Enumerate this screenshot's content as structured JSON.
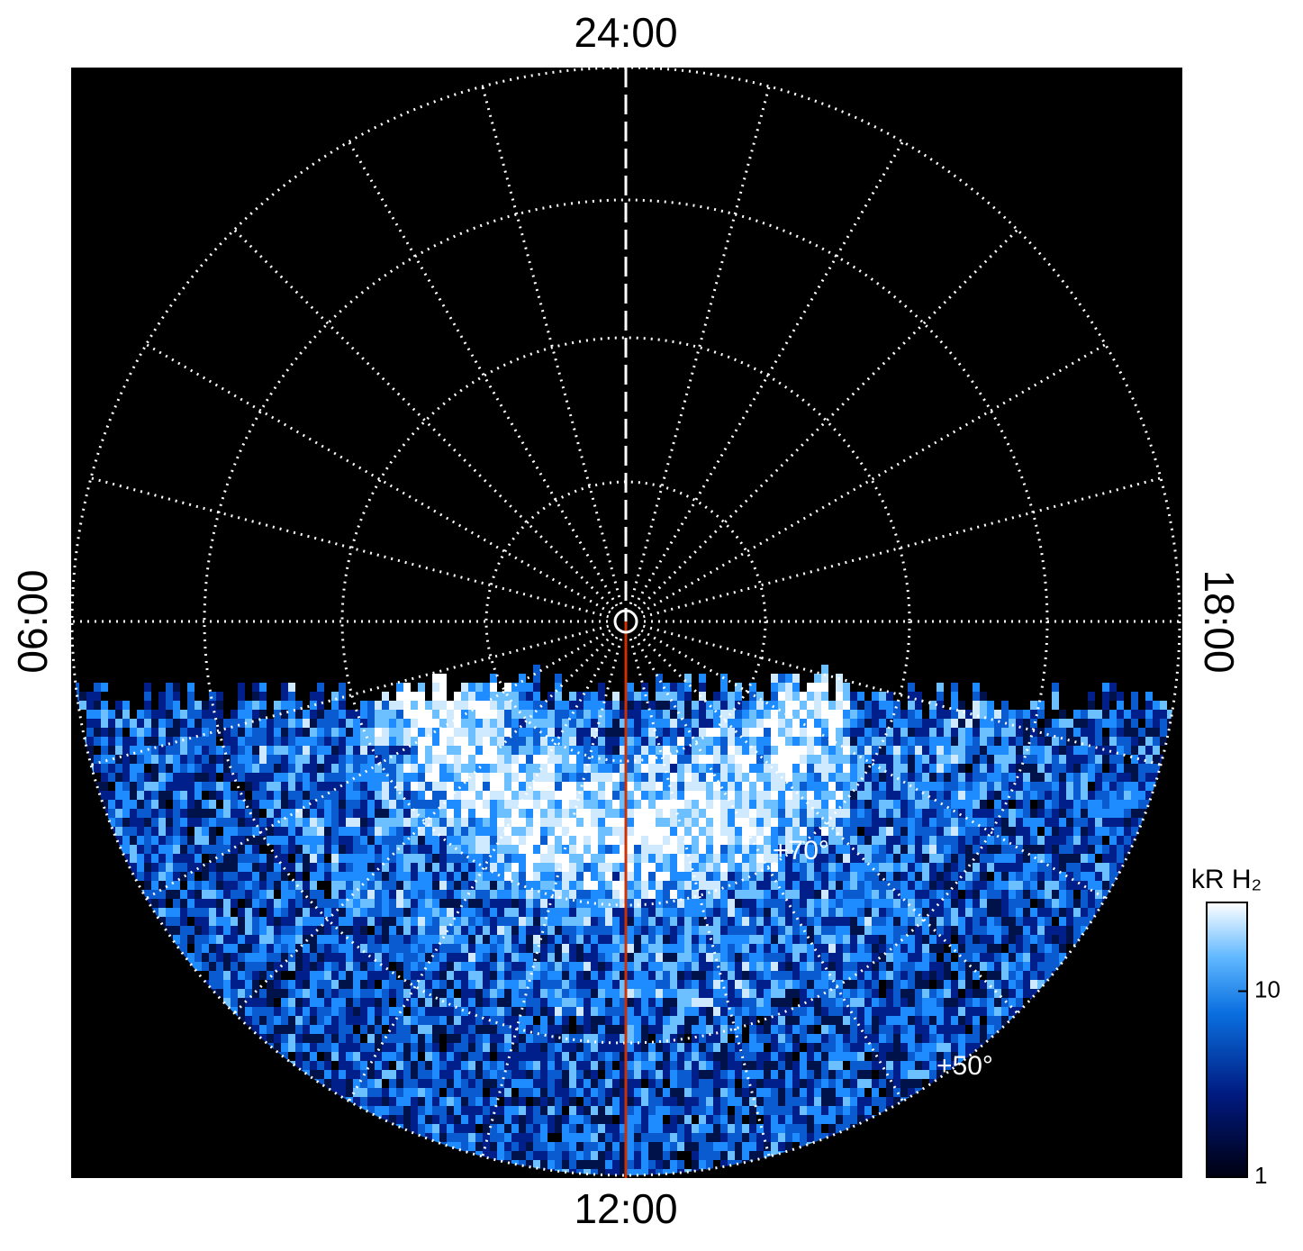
{
  "labels": {
    "top": "24:00",
    "bottom": "12:00",
    "left": "06:00",
    "right": "18:00"
  },
  "latitude_labels": [
    "+70°",
    "+50°"
  ],
  "colorbar": {
    "title": "kR H₂",
    "scale": "log",
    "lim": [
      1,
      30
    ],
    "ticks": [
      1,
      10
    ]
  }
}
